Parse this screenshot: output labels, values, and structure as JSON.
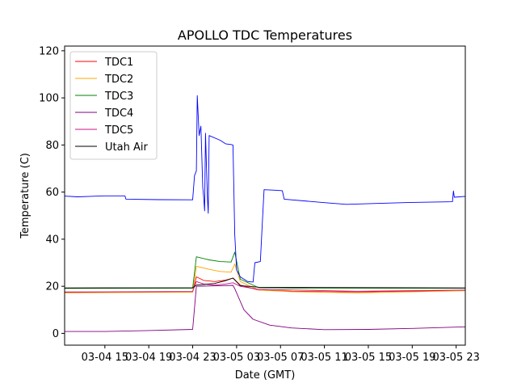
{
  "chart_data": {
    "type": "line",
    "title": "APOLLO TDC Temperatures",
    "xlabel": "Date (GMT)",
    "ylabel": "Temperature (C)",
    "ylim": [
      -5,
      122
    ],
    "xlim": [
      "03-04 11:20",
      "03-05 23:50"
    ],
    "yticks": [
      0,
      20,
      40,
      60,
      80,
      100,
      120
    ],
    "xticks": [
      "03-04 15",
      "03-04 19",
      "03-04 23",
      "03-05 03",
      "03-05 07",
      "03-05 11",
      "03-05 15",
      "03-05 19",
      "03-05 23"
    ],
    "grid": false,
    "legend_position": "upper-left",
    "series": [
      {
        "name": "TDC1",
        "color": "#ff0000",
        "points": [
          [
            "03-04 11:20",
            17.4
          ],
          [
            "03-04 23:00",
            17.6
          ],
          [
            "03-04 23:20",
            24
          ],
          [
            "03-05 00:00",
            22.5
          ],
          [
            "03-05 01:00",
            22
          ],
          [
            "03-05 02:00",
            22.6
          ],
          [
            "03-05 02:40",
            23.5
          ],
          [
            "03-05 03:20",
            20.5
          ],
          [
            "03-05 05:00",
            18.4
          ],
          [
            "03-05 08:00",
            17.9
          ],
          [
            "03-05 14:00",
            17.6
          ],
          [
            "03-05 23:50",
            18.2
          ]
        ]
      },
      {
        "name": "TDC2",
        "color": "#ffa500",
        "points": [
          [
            "03-04 11:20",
            17.2
          ],
          [
            "03-04 23:00",
            17.5
          ],
          [
            "03-04 23:20",
            28.5
          ],
          [
            "03-05 00:30",
            27.2
          ],
          [
            "03-05 01:30",
            26.3
          ],
          [
            "03-05 02:30",
            26
          ],
          [
            "03-05 02:50",
            29.5
          ],
          [
            "03-05 03:20",
            22
          ],
          [
            "03-05 05:00",
            18.4
          ],
          [
            "03-05 08:00",
            17.7
          ],
          [
            "03-05 14:00",
            17.2
          ],
          [
            "03-05 23:50",
            18.1
          ]
        ]
      },
      {
        "name": "TDC3",
        "color": "#008000",
        "points": [
          [
            "03-04 11:20",
            19.1
          ],
          [
            "03-04 23:00",
            19.2
          ],
          [
            "03-04 23:20",
            32.5
          ],
          [
            "03-05 00:30",
            31.2
          ],
          [
            "03-05 01:30",
            30.5
          ],
          [
            "03-05 02:30",
            30.3
          ],
          [
            "03-05 02:50",
            34.5
          ],
          [
            "03-05 03:20",
            23
          ],
          [
            "03-05 05:00",
            19.4
          ],
          [
            "03-05 10:00",
            19.1
          ],
          [
            "03-05 23:50",
            19.2
          ]
        ]
      },
      {
        "name": "TDC4",
        "color": "#800080",
        "points": [
          [
            "03-04 11:20",
            0.8
          ],
          [
            "03-04 15:00",
            0.8
          ],
          [
            "03-04 19:00",
            1.2
          ],
          [
            "03-04 23:00",
            1.7
          ],
          [
            "03-04 23:20",
            20
          ],
          [
            "03-05 02:40",
            20.4
          ],
          [
            "03-05 02:50",
            19
          ],
          [
            "03-05 03:40",
            10
          ],
          [
            "03-05 04:30",
            6
          ],
          [
            "03-05 06:00",
            3.5
          ],
          [
            "03-05 08:00",
            2.3
          ],
          [
            "03-05 11:00",
            1.6
          ],
          [
            "03-05 15:00",
            1.7
          ],
          [
            "03-05 19:00",
            2.1
          ],
          [
            "03-05 23:50",
            2.8
          ]
        ]
      },
      {
        "name": "TDC5",
        "color": "#c71585",
        "points": [
          [
            "03-04 11:20",
            17.6
          ],
          [
            "03-04 23:00",
            17.8
          ],
          [
            "03-04 23:20",
            22
          ],
          [
            "03-05 00:00",
            21
          ],
          [
            "03-05 01:00",
            20.5
          ],
          [
            "03-05 02:00",
            21
          ],
          [
            "03-05 02:40",
            21.5
          ],
          [
            "03-05 03:20",
            20
          ],
          [
            "03-05 05:00",
            18.7
          ],
          [
            "03-05 14:00",
            17.9
          ],
          [
            "03-05 23:50",
            18.4
          ]
        ]
      },
      {
        "name": "Utah Air",
        "color": "#000000",
        "points": [
          [
            "03-04 11:20",
            19.3
          ],
          [
            "03-04 23:00",
            19.4
          ],
          [
            "03-04 23:20",
            20.5
          ],
          [
            "03-05 01:00",
            21.2
          ],
          [
            "03-05 02:00",
            22.4
          ],
          [
            "03-05 02:40",
            23.5
          ],
          [
            "03-05 03:20",
            20.3
          ],
          [
            "03-05 05:00",
            19.6
          ],
          [
            "03-05 23:50",
            19.3
          ]
        ]
      },
      {
        "name": "",
        "color": "#0000ff",
        "points": [
          [
            "03-04 11:20",
            58.3
          ],
          [
            "03-04 12:30",
            58
          ],
          [
            "03-04 13:40",
            58.2
          ],
          [
            "03-04 15:00",
            58.4
          ],
          [
            "03-04 16:50",
            58.4
          ],
          [
            "03-04 16:55",
            57
          ],
          [
            "03-04 20:00",
            56.8
          ],
          [
            "03-04 23:00",
            56.7
          ],
          [
            "03-04 23:10",
            67
          ],
          [
            "03-04 23:20",
            69
          ],
          [
            "03-04 23:25",
            101
          ],
          [
            "03-04 23:35",
            84
          ],
          [
            "03-04 23:45",
            88
          ],
          [
            "03-04 23:55",
            62
          ],
          [
            "03-05 00:00",
            58
          ],
          [
            "03-05 00:05",
            52
          ],
          [
            "03-05 00:10",
            85
          ],
          [
            "03-05 00:20",
            58
          ],
          [
            "03-05 00:25",
            51
          ],
          [
            "03-05 00:30",
            84
          ],
          [
            "03-05 01:30",
            82
          ],
          [
            "03-05 02:00",
            80.5
          ],
          [
            "03-05 02:30",
            80.2
          ],
          [
            "03-05 02:40",
            80
          ],
          [
            "03-05 02:50",
            42
          ],
          [
            "03-05 03:00",
            27
          ],
          [
            "03-05 03:20",
            24
          ],
          [
            "03-05 04:00",
            22
          ],
          [
            "03-05 04:30",
            21.8
          ],
          [
            "03-05 04:40",
            30
          ],
          [
            "03-05 05:10",
            30.5
          ],
          [
            "03-05 05:20",
            46
          ],
          [
            "03-05 05:30",
            61
          ],
          [
            "03-05 06:30",
            60.8
          ],
          [
            "03-05 07:10",
            60.6
          ],
          [
            "03-05 07:20",
            57
          ],
          [
            "03-05 11:00",
            55.5
          ],
          [
            "03-05 13:00",
            54.8
          ],
          [
            "03-05 16:00",
            55.2
          ],
          [
            "03-05 19:00",
            55.6
          ],
          [
            "03-05 22:40",
            55.9
          ],
          [
            "03-05 22:45",
            60.5
          ],
          [
            "03-05 22:50",
            57.8
          ],
          [
            "03-05 23:50",
            58.2
          ]
        ]
      }
    ]
  }
}
